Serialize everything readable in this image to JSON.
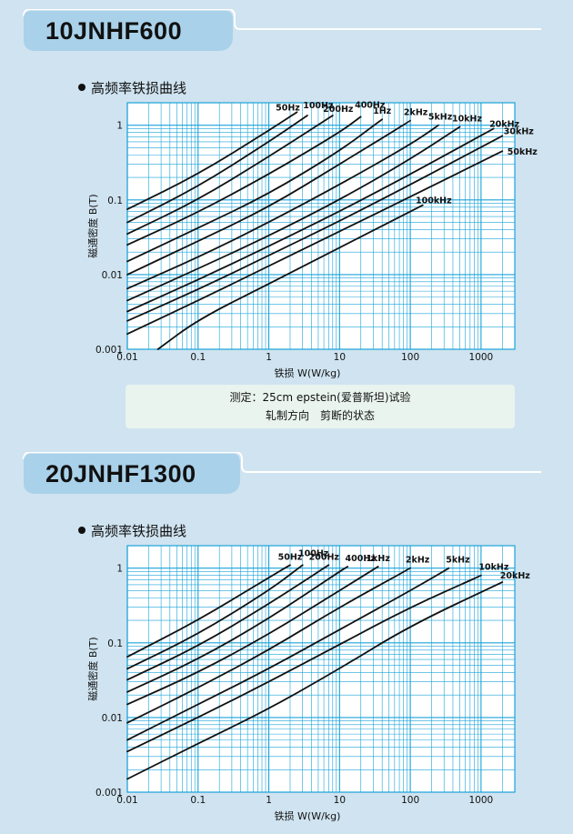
{
  "sections": [
    {
      "title": "10JNHF600",
      "subtitle": "高频率铁损曲线",
      "note_line1": "测定：25cm epstein(爱普斯坦)试验",
      "note_line2": "轧制方向　剪断的状态"
    },
    {
      "title": "20JNHF1300",
      "subtitle": "高频率铁损曲线"
    }
  ],
  "colors": {
    "background": "#cfe3f0",
    "banner": "#a9d1ea",
    "plot_bg": "#ffffff",
    "grid": "#1aa3d9",
    "curve": "#111111"
  },
  "chart_data": [
    {
      "type": "line",
      "title": "",
      "xlabel": "铁损 W(W/kg)",
      "ylabel": "磁通密度 B(T)",
      "x_scale": "log",
      "y_scale": "log",
      "xlim": [
        0.01,
        3000
      ],
      "ylim": [
        0.001,
        2.0
      ],
      "x_ticks": [
        0.01,
        0.1,
        1,
        10,
        100,
        1000
      ],
      "x_tick_labels": [
        "0.01",
        "0.1",
        "1",
        "10",
        "100",
        "1000"
      ],
      "y_ticks": [
        0.001,
        0.01,
        0.1,
        1
      ],
      "y_tick_labels": [
        "0.001",
        "0.01",
        "0.1",
        "1"
      ],
      "grid": true,
      "series": [
        {
          "name": "50Hz",
          "x": [
            0.01,
            0.1,
            1,
            2.5
          ],
          "y": [
            0.075,
            0.22,
            0.85,
            1.5
          ]
        },
        {
          "name": "100Hz",
          "x": [
            0.01,
            0.1,
            1,
            3.5
          ],
          "y": [
            0.05,
            0.15,
            0.6,
            1.35
          ]
        },
        {
          "name": "200Hz",
          "x": [
            0.01,
            0.1,
            1,
            8
          ],
          "y": [
            0.035,
            0.1,
            0.38,
            1.35
          ]
        },
        {
          "name": "400Hz",
          "x": [
            0.01,
            0.1,
            1,
            10,
            20
          ],
          "y": [
            0.025,
            0.068,
            0.22,
            0.8,
            1.3
          ]
        },
        {
          "name": "1Hz",
          "x": [
            0.01,
            0.1,
            1,
            10,
            40
          ],
          "y": [
            0.015,
            0.042,
            0.12,
            0.45,
            1.2
          ]
        },
        {
          "name": "2kHz",
          "x": [
            0.01,
            0.1,
            1,
            10,
            100
          ],
          "y": [
            0.01,
            0.028,
            0.08,
            0.3,
            1.15
          ]
        },
        {
          "name": "5kHz",
          "x": [
            0.01,
            0.1,
            1,
            10,
            100,
            250
          ],
          "y": [
            0.0065,
            0.017,
            0.05,
            0.16,
            0.55,
            1.0
          ]
        },
        {
          "name": "10kHz",
          "x": [
            0.01,
            0.1,
            1,
            10,
            100,
            500
          ],
          "y": [
            0.0045,
            0.012,
            0.033,
            0.1,
            0.35,
            0.95
          ]
        },
        {
          "name": "20kHz",
          "x": [
            0.01,
            0.1,
            1,
            10,
            100,
            1500
          ],
          "y": [
            0.0032,
            0.0085,
            0.024,
            0.07,
            0.22,
            0.9
          ]
        },
        {
          "name": "30kHz",
          "x": [
            0.01,
            0.1,
            1,
            10,
            100,
            2000
          ],
          "y": [
            0.0024,
            0.0063,
            0.018,
            0.052,
            0.16,
            0.72
          ]
        },
        {
          "name": "50kHz",
          "x": [
            0.01,
            0.1,
            1,
            10,
            100,
            2000
          ],
          "y": [
            0.0016,
            0.0045,
            0.013,
            0.038,
            0.11,
            0.45
          ]
        },
        {
          "name": "100kHz",
          "x": [
            0.027,
            0.1,
            1,
            10,
            150
          ],
          "y": [
            0.001,
            0.0025,
            0.0075,
            0.023,
            0.085
          ]
        }
      ]
    },
    {
      "type": "line",
      "title": "",
      "xlabel": "铁损 W(W/kg)",
      "ylabel": "磁通密度 B(T)",
      "x_scale": "log",
      "y_scale": "log",
      "xlim": [
        0.01,
        3000
      ],
      "ylim": [
        0.001,
        2.0
      ],
      "x_ticks": [
        0.01,
        0.1,
        1,
        10,
        100,
        1000
      ],
      "x_tick_labels": [
        "0.01",
        "0.1",
        "1",
        "10",
        "100",
        "1000"
      ],
      "y_ticks": [
        0.001,
        0.01,
        0.1,
        1
      ],
      "y_tick_labels": [
        "0.001",
        "0.01",
        "0.1",
        "1"
      ],
      "grid": true,
      "series": [
        {
          "name": "50Hz",
          "x": [
            0.01,
            0.1,
            1,
            2
          ],
          "y": [
            0.065,
            0.2,
            0.75,
            1.1
          ]
        },
        {
          "name": "100Hz",
          "x": [
            0.01,
            0.1,
            1,
            3
          ],
          "y": [
            0.045,
            0.13,
            0.5,
            1.1
          ]
        },
        {
          "name": "200Hz",
          "x": [
            0.01,
            0.1,
            1,
            7
          ],
          "y": [
            0.032,
            0.09,
            0.33,
            1.1
          ]
        },
        {
          "name": "400Hz",
          "x": [
            0.01,
            0.1,
            1,
            10,
            13
          ],
          "y": [
            0.022,
            0.06,
            0.21,
            0.9,
            1.05
          ]
        },
        {
          "name": "1kHz",
          "x": [
            0.01,
            0.1,
            1,
            10,
            35
          ],
          "y": [
            0.015,
            0.04,
            0.13,
            0.5,
            1.05
          ]
        },
        {
          "name": "2kHz",
          "x": [
            0.01,
            0.1,
            1,
            10,
            100
          ],
          "y": [
            0.0085,
            0.025,
            0.08,
            0.3,
            1.0
          ]
        },
        {
          "name": "5kHz",
          "x": [
            0.01,
            0.1,
            1,
            10,
            100,
            350
          ],
          "y": [
            0.005,
            0.015,
            0.045,
            0.15,
            0.5,
            1.0
          ]
        },
        {
          "name": "10kHz",
          "x": [
            0.01,
            0.1,
            1,
            10,
            100,
            1000
          ],
          "y": [
            0.0035,
            0.01,
            0.03,
            0.095,
            0.3,
            0.8
          ]
        },
        {
          "name": "20kHz",
          "x": [
            0.01,
            0.1,
            1,
            10,
            100,
            2000
          ],
          "y": [
            0.0015,
            0.0045,
            0.013,
            0.045,
            0.17,
            0.65
          ]
        }
      ]
    }
  ]
}
